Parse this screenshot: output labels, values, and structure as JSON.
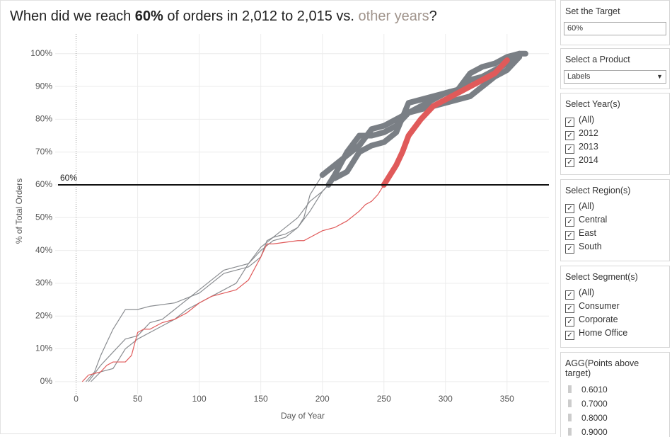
{
  "chart_data": {
    "type": "line",
    "title": [
      "When did we reach",
      "60%",
      "of orders in 2,012 to 2,015 vs.",
      "other years",
      "?"
    ],
    "x_label": "Day of Year",
    "y_label": "% of Total Orders",
    "xlim": [
      -17,
      384
    ],
    "xticks": [
      0,
      50,
      100,
      150,
      200,
      250,
      300,
      350
    ],
    "ylim": [
      -3.7,
      106
    ],
    "yticks": [
      {
        "value": 0,
        "label": "0%"
      },
      {
        "value": 10,
        "label": "10%"
      },
      {
        "value": 20,
        "label": "20%"
      },
      {
        "value": 30,
        "label": "30%"
      },
      {
        "value": 40,
        "label": "40%"
      },
      {
        "value": 50,
        "label": "50%"
      },
      {
        "value": 60,
        "label": "60%"
      },
      {
        "value": 70,
        "label": "70%"
      },
      {
        "value": 80,
        "label": "80%"
      },
      {
        "value": 90,
        "label": "90%"
      },
      {
        "value": 100,
        "label": "100%"
      }
    ],
    "grid": true,
    "target": {
      "value": 60,
      "label": "60%"
    },
    "series": [
      {
        "color": "#8a8d91",
        "x": [
          8,
          15,
          20,
          25,
          30,
          40,
          50,
          60,
          80,
          100,
          110,
          120,
          130,
          140,
          150,
          155,
          160,
          170,
          180,
          185,
          190,
          200,
          210,
          230,
          240,
          250,
          260,
          270,
          280,
          290,
          300,
          310,
          320,
          330,
          340,
          350,
          360
        ],
        "values": [
          0,
          3,
          8,
          12,
          16,
          22,
          22,
          23,
          24,
          27,
          30,
          33,
          34,
          35,
          38,
          43,
          44,
          45,
          47,
          50,
          57,
          63,
          66,
          72,
          77,
          78,
          80,
          82,
          84,
          86,
          88,
          89,
          92,
          93,
          95,
          97,
          100
        ]
      },
      {
        "color": "#8a8d91",
        "x": [
          10,
          20,
          30,
          40,
          50,
          60,
          70,
          80,
          90,
          100,
          110,
          120,
          130,
          140,
          150,
          160,
          170,
          180,
          190,
          200,
          210,
          220,
          230,
          240,
          250,
          260,
          270,
          280,
          290,
          300,
          310,
          320,
          330,
          340,
          350,
          360,
          365
        ],
        "values": [
          0,
          5,
          9,
          13,
          14,
          18,
          19,
          22,
          25,
          28,
          31,
          34,
          35,
          36,
          40,
          43,
          44,
          47,
          52,
          58,
          62,
          64,
          70,
          72,
          73,
          76,
          85,
          86,
          87,
          88,
          89,
          94,
          96,
          97,
          99,
          100,
          100
        ]
      },
      {
        "color": "#8a8d91",
        "x": [
          12,
          20,
          30,
          40,
          50,
          60,
          70,
          80,
          90,
          100,
          110,
          120,
          130,
          140,
          150,
          160,
          170,
          180,
          190,
          200,
          205,
          210,
          220,
          230,
          240,
          250,
          260,
          270,
          280,
          290,
          300,
          310,
          320,
          330,
          340,
          350,
          360
        ],
        "values": [
          0,
          3,
          4,
          10,
          13,
          15,
          17,
          19,
          22,
          24,
          26,
          28,
          30,
          36,
          41,
          44,
          47,
          50,
          55,
          58,
          60,
          63,
          70,
          75,
          75,
          76,
          78,
          82,
          83,
          84,
          85,
          86,
          87,
          90,
          93,
          95,
          99
        ]
      },
      {
        "color": "#e05a5a",
        "x": [
          5,
          10,
          20,
          25,
          30,
          40,
          45,
          50,
          55,
          60,
          65,
          70,
          80,
          90,
          100,
          110,
          120,
          130,
          140,
          150,
          155,
          160,
          180,
          185,
          190,
          200,
          210,
          215,
          220,
          230,
          235,
          240,
          245,
          250,
          255,
          260,
          265,
          270,
          280,
          290,
          300,
          310,
          320,
          330,
          340,
          345,
          350
        ],
        "values": [
          0,
          2,
          3,
          5,
          6,
          6,
          8,
          15,
          16,
          16,
          17,
          18,
          19,
          21,
          24,
          26,
          27,
          28,
          31,
          38,
          42,
          42,
          43,
          43,
          44,
          46,
          47,
          48,
          49,
          52,
          54,
          55,
          57,
          60,
          63,
          66,
          70,
          75,
          80,
          84,
          86,
          88,
          90,
          92,
          94,
          96,
          98
        ]
      }
    ]
  },
  "sidebar": {
    "target": {
      "title": "Set the Target",
      "value": "60%"
    },
    "product": {
      "title": "Select a Product",
      "value": "Labels"
    },
    "years": {
      "title": "Select Year(s)",
      "items": [
        "(All)",
        "2012",
        "2013",
        "2014"
      ]
    },
    "regions": {
      "title": "Select Region(s)",
      "items": [
        "(All)",
        "Central",
        "East",
        "South"
      ]
    },
    "segments": {
      "title": "Select Segment(s)",
      "items": [
        "(All)",
        "Consumer",
        "Corporate",
        "Home Office"
      ]
    },
    "legend": {
      "title": "AGG(Points above target)",
      "items": [
        "0.6010",
        "0.7000",
        "0.8000",
        "0.9000"
      ]
    }
  }
}
